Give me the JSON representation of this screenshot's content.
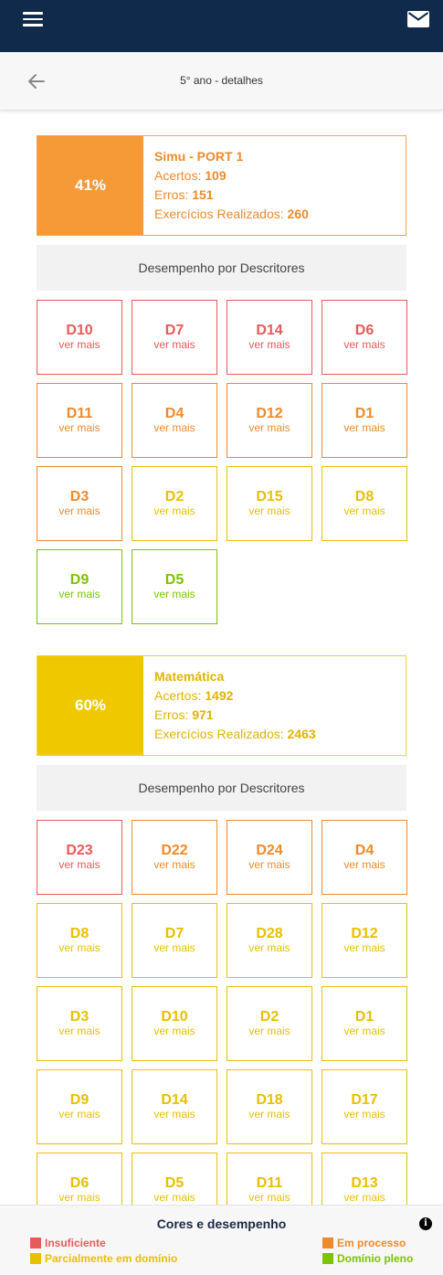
{
  "app": {
    "menu_icon": "hamburger-menu-icon",
    "mail_icon": "envelope-icon"
  },
  "header": {
    "title": "5° ano - detalhes",
    "back_icon": "arrow-left-icon"
  },
  "colors": {
    "insuficiente": "#e85a5a",
    "em_processo": "#ef8a2a",
    "parcialmente": "#e8c000",
    "pleno": "#7cc400",
    "topbar": "#0f2a4a"
  },
  "subjects": [
    {
      "name": "Simu - PORT 1",
      "percent": "41%",
      "acertos_label": "Acertos: ",
      "acertos": "109",
      "erros_label": "Erros: ",
      "erros": "151",
      "exercicios_label": "Exercícios Realizados: ",
      "exercicios": "260",
      "desc_title": "Desempenho por Descritores",
      "descriptors": [
        {
          "code": "D10",
          "more": "ver mais",
          "level": "insuficiente"
        },
        {
          "code": "D7",
          "more": "ver mais",
          "level": "insuficiente"
        },
        {
          "code": "D14",
          "more": "ver mais",
          "level": "insuficiente"
        },
        {
          "code": "D6",
          "more": "ver mais",
          "level": "insuficiente"
        },
        {
          "code": "D11",
          "more": "ver mais",
          "level": "em_processo"
        },
        {
          "code": "D4",
          "more": "ver mais",
          "level": "em_processo"
        },
        {
          "code": "D12",
          "more": "ver mais",
          "level": "em_processo"
        },
        {
          "code": "D1",
          "more": "ver mais",
          "level": "em_processo"
        },
        {
          "code": "D3",
          "more": "ver mais",
          "level": "em_processo"
        },
        {
          "code": "D2",
          "more": "ver mais",
          "level": "parcialmente"
        },
        {
          "code": "D15",
          "more": "ver mais",
          "level": "parcialmente"
        },
        {
          "code": "D8",
          "more": "ver mais",
          "level": "parcialmente"
        },
        {
          "code": "D9",
          "more": "ver mais",
          "level": "pleno"
        },
        {
          "code": "D5",
          "more": "ver mais",
          "level": "pleno"
        }
      ]
    },
    {
      "name": "Matemática",
      "percent": "60%",
      "acertos_label": "Acertos: ",
      "acertos": "1492",
      "erros_label": "Erros: ",
      "erros": "971",
      "exercicios_label": "Exercícios Realizados: ",
      "exercicios": "2463",
      "desc_title": "Desempenho por Descritores",
      "descriptors": [
        {
          "code": "D23",
          "more": "ver mais",
          "level": "insuficiente"
        },
        {
          "code": "D22",
          "more": "ver mais",
          "level": "em_processo"
        },
        {
          "code": "D24",
          "more": "ver mais",
          "level": "em_processo"
        },
        {
          "code": "D4",
          "more": "ver mais",
          "level": "em_processo"
        },
        {
          "code": "D8",
          "more": "ver mais",
          "level": "parcialmente"
        },
        {
          "code": "D7",
          "more": "ver mais",
          "level": "parcialmente"
        },
        {
          "code": "D28",
          "more": "ver mais",
          "level": "parcialmente"
        },
        {
          "code": "D12",
          "more": "ver mais",
          "level": "parcialmente"
        },
        {
          "code": "D3",
          "more": "ver mais",
          "level": "parcialmente"
        },
        {
          "code": "D10",
          "more": "ver mais",
          "level": "parcialmente"
        },
        {
          "code": "D2",
          "more": "ver mais",
          "level": "parcialmente"
        },
        {
          "code": "D1",
          "more": "ver mais",
          "level": "parcialmente"
        },
        {
          "code": "D9",
          "more": "ver mais",
          "level": "parcialmente"
        },
        {
          "code": "D14",
          "more": "ver mais",
          "level": "parcialmente"
        },
        {
          "code": "D18",
          "more": "ver mais",
          "level": "parcialmente"
        },
        {
          "code": "D17",
          "more": "ver mais",
          "level": "parcialmente"
        },
        {
          "code": "D6",
          "more": "ver mais",
          "level": "parcialmente"
        },
        {
          "code": "D5",
          "more": "ver mais",
          "level": "parcialmente"
        },
        {
          "code": "D11",
          "more": "ver mais",
          "level": "parcialmente"
        },
        {
          "code": "D13",
          "more": "ver mais",
          "level": "parcialmente"
        }
      ]
    }
  ],
  "legend": {
    "title": "Cores e desempenho",
    "info_icon": "info-icon",
    "items": [
      {
        "label": "Insuficiente",
        "level": "insuficiente"
      },
      {
        "label": "Em processo",
        "level": "em_processo"
      },
      {
        "label": "Parcialmente em domínio",
        "level": "parcialmente"
      },
      {
        "label": "Domínio pleno",
        "level": "pleno"
      }
    ]
  }
}
